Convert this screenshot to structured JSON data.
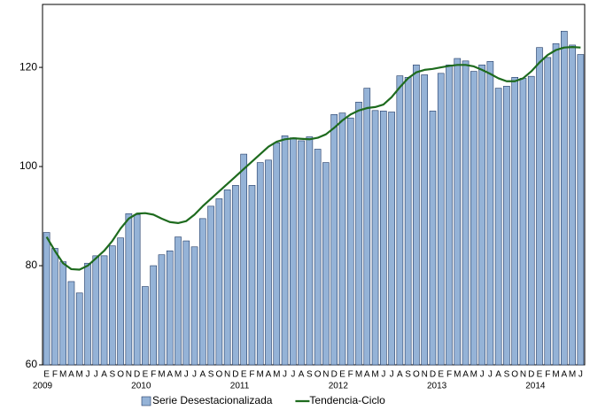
{
  "chart_data": {
    "type": "bar",
    "categories": [
      "E",
      "F",
      "M",
      "A",
      "M",
      "J",
      "J",
      "A",
      "S",
      "O",
      "N",
      "D",
      "E",
      "F",
      "M",
      "A",
      "M",
      "J",
      "J",
      "A",
      "S",
      "O",
      "N",
      "D",
      "E",
      "F",
      "M",
      "A",
      "M",
      "J",
      "J",
      "A",
      "S",
      "O",
      "N",
      "D",
      "E",
      "F",
      "M",
      "A",
      "M",
      "J",
      "J",
      "A",
      "S",
      "O",
      "N",
      "D",
      "E",
      "F",
      "M",
      "A",
      "M",
      "J",
      "J",
      "A",
      "S",
      "O",
      "N",
      "D",
      "E",
      "F",
      "M",
      "A",
      "M",
      "J"
    ],
    "years": [
      "2009",
      "2010",
      "2011",
      "2012",
      "2013",
      "2014"
    ],
    "series": [
      {
        "name": "Serie Desestacionalizada",
        "type": "bar",
        "color": "#95b3d7",
        "values": [
          86.7,
          83.5,
          80.8,
          76.8,
          74.5,
          80.5,
          82,
          82,
          84,
          85.6,
          90.5,
          90.3,
          75.8,
          80,
          82.2,
          83,
          85.8,
          85,
          83.8,
          89.5,
          92,
          93.5,
          95.3,
          96.2,
          102.5,
          96.2,
          100.8,
          101.3,
          104.8,
          106.2,
          105.8,
          105.2,
          106,
          103.5,
          100.8,
          110.5,
          110.8,
          109.8,
          113,
          115.8,
          111.3,
          111.2,
          111,
          118.3,
          118,
          120.5,
          118.5,
          111.2,
          118.8,
          120.5,
          121.8,
          121.3,
          119.2,
          120.5,
          121.2,
          115.8,
          116.2,
          118,
          117.8,
          118.2,
          124,
          122,
          124.8,
          127.3,
          124.5,
          122.6
        ]
      },
      {
        "name": "Tendencia-Ciclo",
        "type": "line",
        "color": "#1e6b1e",
        "values": [
          85.8,
          83,
          80.5,
          79.3,
          79.2,
          80,
          81.5,
          83,
          85,
          87.5,
          89.5,
          90.5,
          90.6,
          90.3,
          89.5,
          88.8,
          88.6,
          89,
          90.3,
          92,
          93.5,
          95,
          96.5,
          98,
          99.5,
          101,
          102.5,
          104,
          105,
          105.5,
          105.7,
          105.6,
          105.5,
          105.8,
          106.5,
          107.8,
          109.3,
          110.5,
          111.3,
          111.8,
          112,
          112.5,
          114,
          116,
          117.8,
          119,
          119.5,
          119.7,
          120,
          120.3,
          120.5,
          120.5,
          120.2,
          119.5,
          118.7,
          117.8,
          117.2,
          117.2,
          117.8,
          119.2,
          121,
          122.5,
          123.5,
          124,
          124.1,
          124
        ]
      }
    ],
    "ylim": [
      60,
      132.7
    ],
    "yticks": [
      60,
      80,
      100,
      120
    ]
  }
}
